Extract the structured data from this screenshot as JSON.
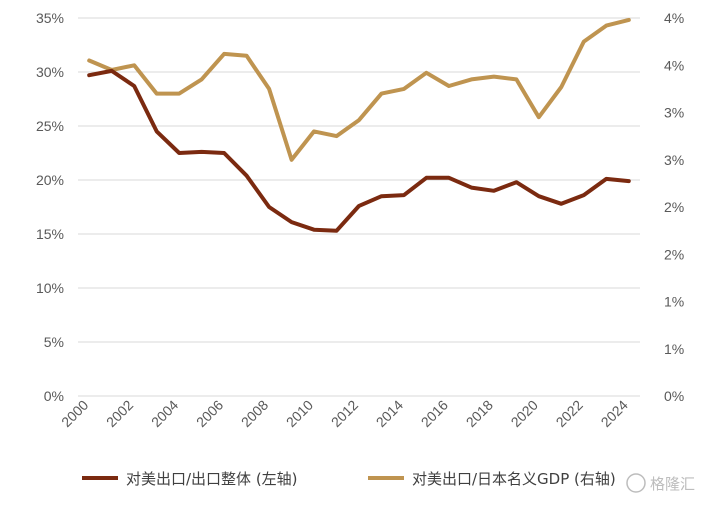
{
  "chart_data": {
    "type": "line",
    "x": [
      2000,
      2001,
      2002,
      2003,
      2004,
      2005,
      2006,
      2007,
      2008,
      2009,
      2010,
      2011,
      2012,
      2013,
      2014,
      2015,
      2016,
      2017,
      2018,
      2019,
      2020,
      2021,
      2022,
      2023,
      2024
    ],
    "x_tick_labels": [
      "2000",
      "2002",
      "2004",
      "2006",
      "2008",
      "2010",
      "2012",
      "2014",
      "2016",
      "2018",
      "2020",
      "2022",
      "2024"
    ],
    "y_left_ticks": [
      "0%",
      "5%",
      "10%",
      "15%",
      "20%",
      "25%",
      "30%",
      "35%"
    ],
    "y_right_ticks": [
      "0%",
      "1%",
      "1%",
      "2%",
      "2%",
      "3%",
      "3%",
      "4%",
      "4%"
    ],
    "ylim_left": [
      0,
      35
    ],
    "ylim_right": [
      0,
      4
    ],
    "grid": true,
    "legend_position": "bottom",
    "series": [
      {
        "name": "对美出口/出口整体 (左轴)",
        "axis": "left",
        "color": "#7B2A10",
        "values": [
          29.7,
          30.1,
          28.7,
          24.5,
          22.5,
          22.6,
          22.5,
          20.4,
          17.5,
          16.1,
          15.4,
          15.3,
          17.6,
          18.5,
          18.6,
          20.2,
          20.2,
          19.3,
          19.0,
          19.8,
          18.5,
          17.8,
          18.6,
          20.1,
          19.9
        ]
      },
      {
        "name": "对美出口/日本名义GDP (右轴)",
        "axis": "right",
        "color": "#BF9450",
        "values": [
          3.55,
          3.45,
          3.5,
          3.2,
          3.2,
          3.35,
          3.62,
          3.6,
          3.25,
          2.5,
          2.8,
          2.75,
          2.92,
          3.2,
          3.25,
          3.42,
          3.28,
          3.35,
          3.38,
          3.35,
          2.95,
          3.27,
          3.75,
          3.92,
          3.98
        ]
      }
    ]
  },
  "watermark": {
    "text": "格隆汇"
  }
}
